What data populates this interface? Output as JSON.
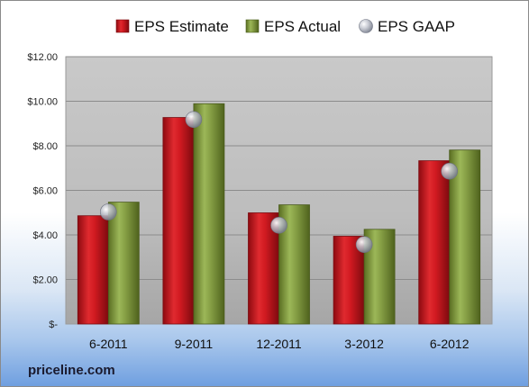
{
  "chart_data": {
    "type": "bar",
    "categories": [
      "6-2011",
      "9-2011",
      "12-2011",
      "3-2012",
      "6-2012"
    ],
    "series": [
      {
        "name": "EPS Estimate",
        "kind": "bar",
        "color": "#c8131a",
        "values": [
          4.86,
          9.27,
          4.99,
          3.94,
          7.33
        ]
      },
      {
        "name": "EPS Actual",
        "kind": "bar",
        "color": "#7f9a3a",
        "values": [
          5.47,
          9.89,
          5.35,
          4.25,
          7.81
        ]
      },
      {
        "name": "EPS GAAP",
        "kind": "marker",
        "color": "#b4b8c4",
        "values": [
          5.03,
          9.18,
          4.43,
          3.57,
          6.86
        ]
      }
    ],
    "y_ticks": [
      "$-",
      "$2.00",
      "$4.00",
      "$6.00",
      "$8.00",
      "$10.00",
      "$12.00"
    ],
    "ylim": [
      0,
      12
    ],
    "grid": true,
    "legend_position": "top"
  },
  "footer": {
    "brand": "priceline.com"
  }
}
